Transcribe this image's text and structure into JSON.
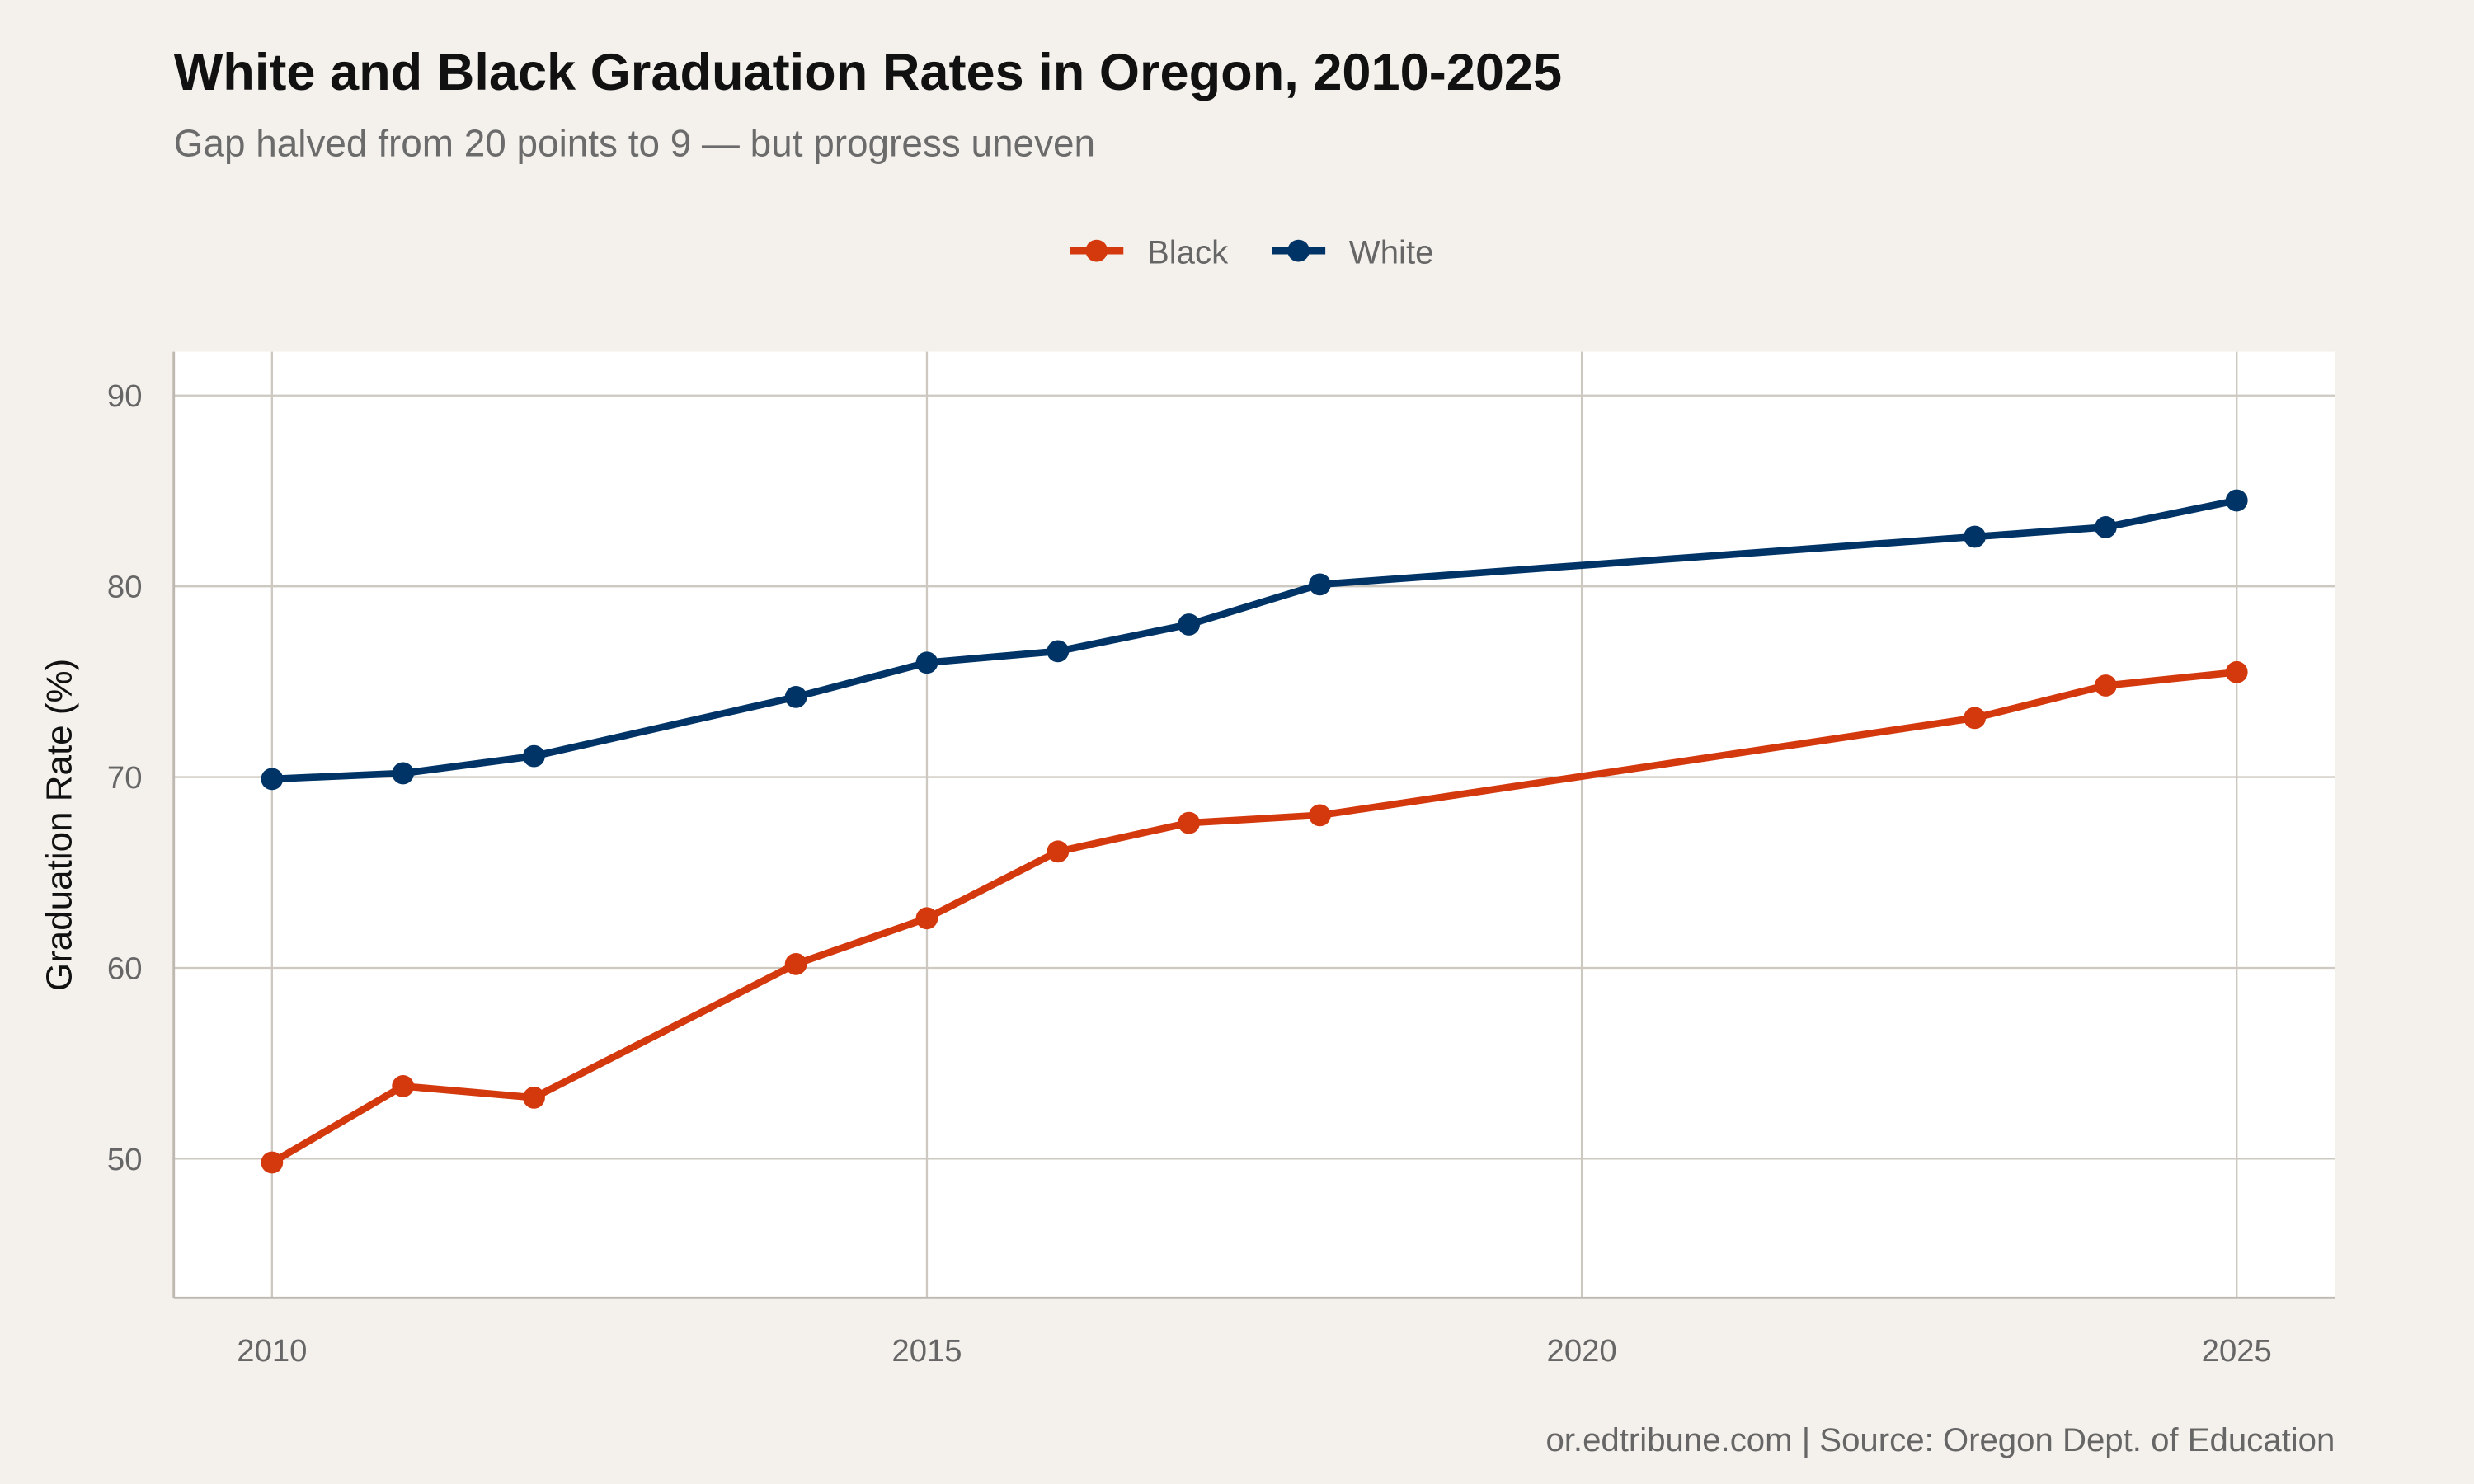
{
  "chart_data": {
    "type": "line",
    "title": "White and Black Graduation Rates in Oregon, 2010-2025",
    "subtitle": "Gap halved from 20 points to 9 — but progress uneven",
    "xlabel": "",
    "ylabel": "Graduation Rate (%)",
    "caption": "or.edtribune.com | Source: Oregon Dept. of Education",
    "xlim": [
      2009.25,
      2025.75
    ],
    "ylim": [
      42.7,
      92.3
    ],
    "xticks": [
      2010,
      2015,
      2020,
      2025
    ],
    "yticks": [
      50,
      60,
      70,
      80,
      90
    ],
    "grid": true,
    "legend_position": "top",
    "series": [
      {
        "name": "Black",
        "color": "#d4380d",
        "x": [
          2010,
          2011,
          2012,
          2014,
          2015,
          2016,
          2017,
          2018,
          2023,
          2024,
          2025
        ],
        "y": [
          49.8,
          53.8,
          53.2,
          60.2,
          62.6,
          66.1,
          67.6,
          68.0,
          73.1,
          74.8,
          75.5
        ]
      },
      {
        "name": "White",
        "color": "#003366",
        "x": [
          2010,
          2011,
          2012,
          2014,
          2015,
          2016,
          2017,
          2018,
          2023,
          2024,
          2025
        ],
        "y": [
          69.9,
          70.2,
          71.1,
          74.2,
          76.0,
          76.6,
          78.0,
          80.1,
          82.6,
          83.1,
          84.5
        ]
      }
    ]
  }
}
